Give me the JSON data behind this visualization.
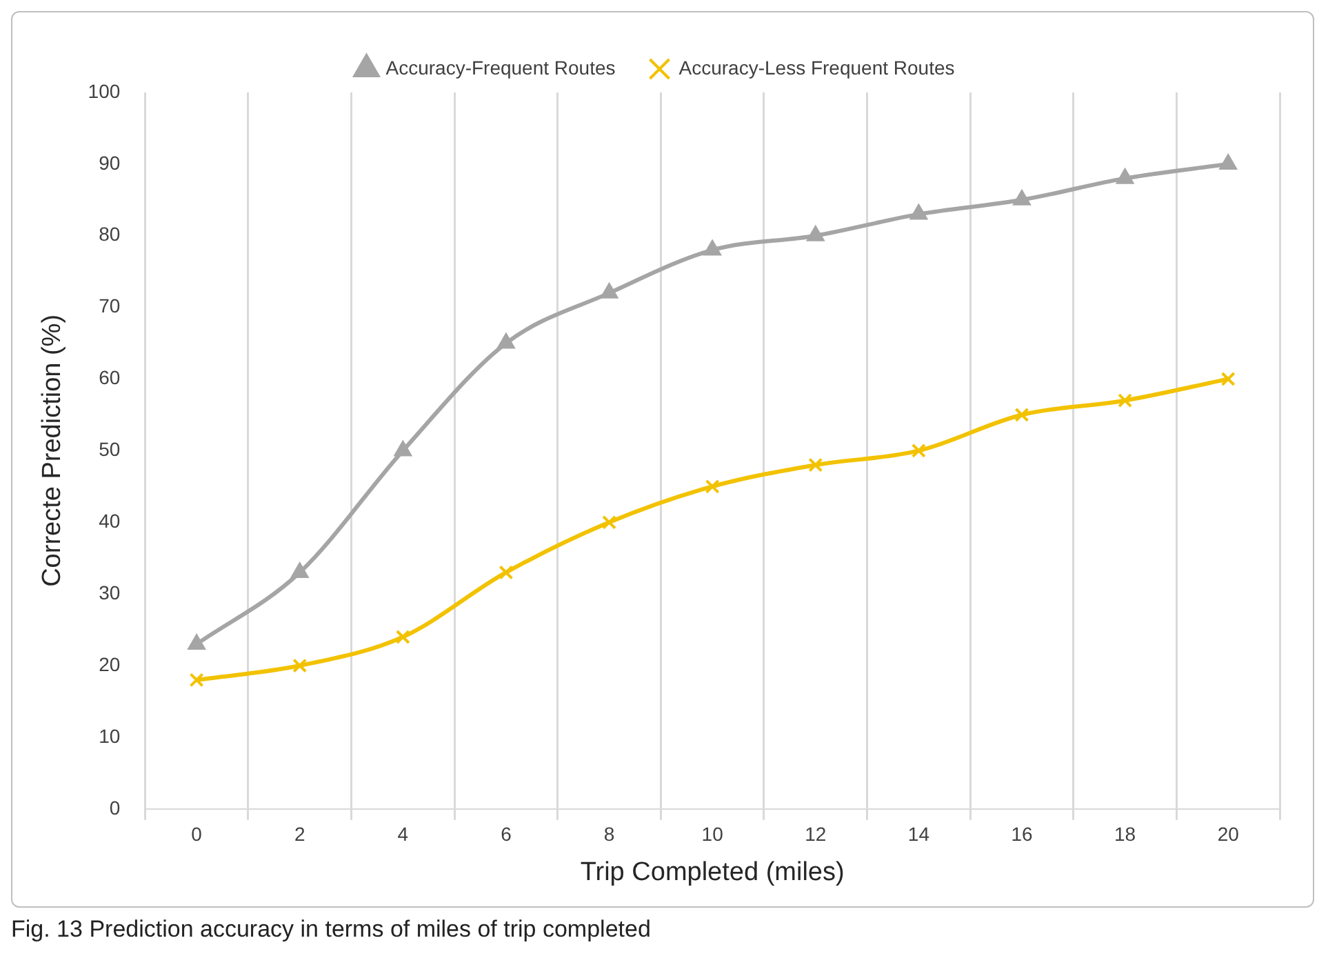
{
  "chart_data": {
    "type": "line",
    "xlabel": "Trip Completed (miles)",
    "ylabel": "Correcte Prediction (%)",
    "categories": [
      "0",
      "2",
      "4",
      "6",
      "8",
      "10",
      "12",
      "14",
      "16",
      "18",
      "20"
    ],
    "series": [
      {
        "name": "Accuracy-Frequent Routes",
        "color": "#a5a5a5",
        "marker": "triangle",
        "values": [
          23,
          33,
          50,
          65,
          72,
          78,
          80,
          83,
          85,
          88,
          90
        ]
      },
      {
        "name": "Accuracy-Less Frequent Routes",
        "color": "#f2c200",
        "marker": "cross",
        "values": [
          18,
          20,
          24,
          33,
          40,
          45,
          48,
          50,
          55,
          57,
          60
        ]
      }
    ],
    "ylim": [
      0,
      100
    ],
    "yticks": [
      0,
      10,
      20,
      30,
      40,
      50,
      60,
      70,
      80,
      90,
      100
    ],
    "grid": "x",
    "legend": "top",
    "annotations": [
      "Fig. 13  Prediction accuracy in terms of miles of trip completed"
    ]
  }
}
